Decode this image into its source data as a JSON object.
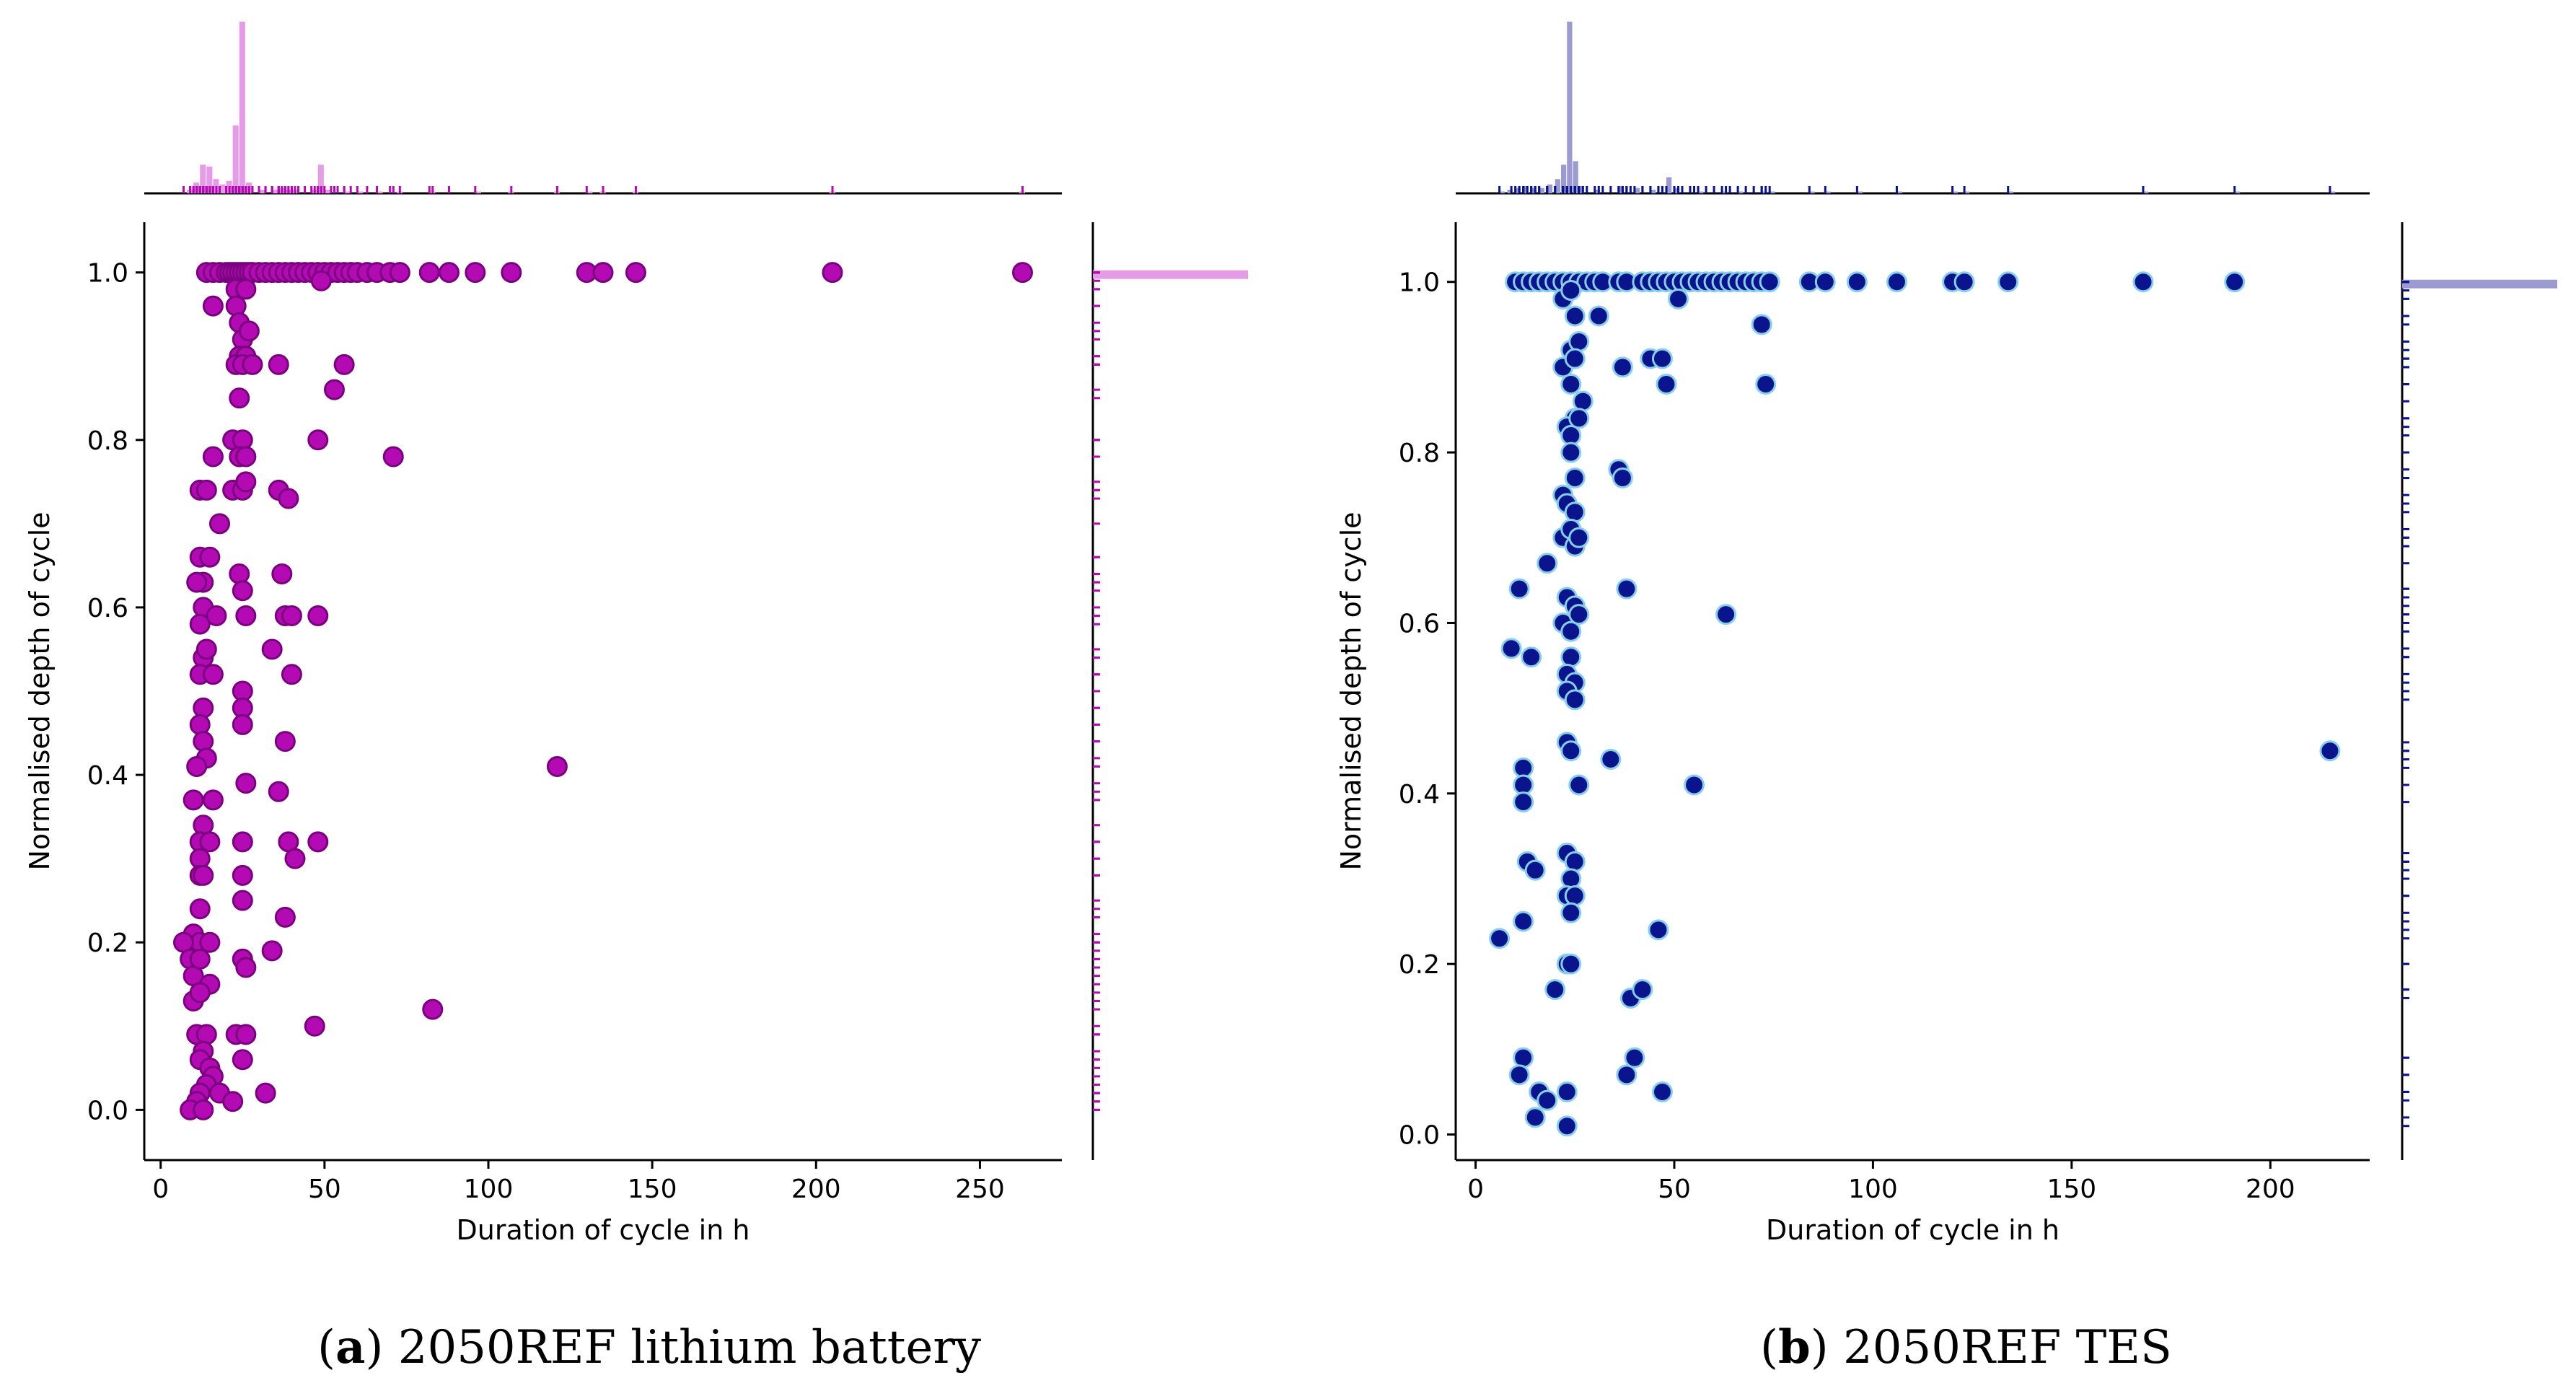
{
  "chart_data": [
    {
      "type": "scatter",
      "panel_letter": "a",
      "caption": "2050REF lithium battery",
      "xlabel": "Duration of cycle in h",
      "ylabel": "Normalised depth of cycle",
      "xlim": [
        -5,
        275
      ],
      "ylim": [
        -0.06,
        1.06
      ],
      "xticks": [
        0,
        50,
        100,
        150,
        200,
        250
      ],
      "yticks": [
        0.0,
        0.2,
        0.4,
        0.6,
        0.8,
        1.0
      ],
      "colors": {
        "marker_fill": "#b40ab4",
        "marker_edge": "#7a0080",
        "hist": "#e69be6",
        "rug": "#b40ab4"
      },
      "points": [
        [
          14,
          1.0
        ],
        [
          16,
          1.0
        ],
        [
          18,
          1.0
        ],
        [
          20,
          1.0
        ],
        [
          21,
          1.0
        ],
        [
          22,
          1.0
        ],
        [
          23,
          1.0
        ],
        [
          24,
          1.0
        ],
        [
          25,
          1.0
        ],
        [
          26,
          1.0
        ],
        [
          27,
          1.0
        ],
        [
          28,
          1.0
        ],
        [
          30,
          1.0
        ],
        [
          32,
          1.0
        ],
        [
          34,
          1.0
        ],
        [
          36,
          1.0
        ],
        [
          38,
          1.0
        ],
        [
          40,
          1.0
        ],
        [
          42,
          1.0
        ],
        [
          44,
          1.0
        ],
        [
          46,
          1.0
        ],
        [
          48,
          1.0
        ],
        [
          50,
          1.0
        ],
        [
          52,
          1.0
        ],
        [
          54,
          1.0
        ],
        [
          56,
          1.0
        ],
        [
          58,
          1.0
        ],
        [
          60,
          1.0
        ],
        [
          63,
          1.0
        ],
        [
          66,
          1.0
        ],
        [
          70,
          1.0
        ],
        [
          73,
          1.0
        ],
        [
          82,
          1.0
        ],
        [
          88,
          1.0
        ],
        [
          96,
          1.0
        ],
        [
          107,
          1.0
        ],
        [
          130,
          1.0
        ],
        [
          135,
          1.0
        ],
        [
          145,
          1.0
        ],
        [
          205,
          1.0
        ],
        [
          263,
          1.0
        ],
        [
          16,
          0.96
        ],
        [
          23,
          0.98
        ],
        [
          26,
          0.98
        ],
        [
          49,
          0.99
        ],
        [
          23,
          0.96
        ],
        [
          24,
          0.94
        ],
        [
          25,
          0.92
        ],
        [
          27,
          0.93
        ],
        [
          24,
          0.9
        ],
        [
          26,
          0.9
        ],
        [
          23,
          0.89
        ],
        [
          25,
          0.89
        ],
        [
          28,
          0.89
        ],
        [
          36,
          0.89
        ],
        [
          56,
          0.89
        ],
        [
          53,
          0.86
        ],
        [
          24,
          0.85
        ],
        [
          22,
          0.8
        ],
        [
          25,
          0.8
        ],
        [
          48,
          0.8
        ],
        [
          24,
          0.78
        ],
        [
          26,
          0.78
        ],
        [
          16,
          0.78
        ],
        [
          71,
          0.78
        ],
        [
          22,
          0.74
        ],
        [
          25,
          0.74
        ],
        [
          26,
          0.75
        ],
        [
          36,
          0.74
        ],
        [
          39,
          0.73
        ],
        [
          12,
          0.74
        ],
        [
          14,
          0.74
        ],
        [
          18,
          0.7
        ],
        [
          12,
          0.66
        ],
        [
          15,
          0.66
        ],
        [
          13,
          0.63
        ],
        [
          24,
          0.64
        ],
        [
          25,
          0.62
        ],
        [
          37,
          0.64
        ],
        [
          11,
          0.63
        ],
        [
          13,
          0.6
        ],
        [
          12,
          0.58
        ],
        [
          26,
          0.59
        ],
        [
          17,
          0.59
        ],
        [
          38,
          0.59
        ],
        [
          40,
          0.59
        ],
        [
          48,
          0.59
        ],
        [
          34,
          0.55
        ],
        [
          13,
          0.54
        ],
        [
          14,
          0.55
        ],
        [
          12,
          0.52
        ],
        [
          16,
          0.52
        ],
        [
          40,
          0.52
        ],
        [
          25,
          0.5
        ],
        [
          25,
          0.48
        ],
        [
          25,
          0.46
        ],
        [
          13,
          0.48
        ],
        [
          12,
          0.46
        ],
        [
          13,
          0.44
        ],
        [
          38,
          0.44
        ],
        [
          14,
          0.42
        ],
        [
          11,
          0.41
        ],
        [
          26,
          0.39
        ],
        [
          36,
          0.38
        ],
        [
          121,
          0.41
        ],
        [
          10,
          0.37
        ],
        [
          16,
          0.37
        ],
        [
          13,
          0.34
        ],
        [
          12,
          0.32
        ],
        [
          15,
          0.32
        ],
        [
          25,
          0.32
        ],
        [
          39,
          0.32
        ],
        [
          48,
          0.32
        ],
        [
          12,
          0.3
        ],
        [
          41,
          0.3
        ],
        [
          12,
          0.28
        ],
        [
          13,
          0.28
        ],
        [
          25,
          0.28
        ],
        [
          12,
          0.24
        ],
        [
          25,
          0.25
        ],
        [
          38,
          0.23
        ],
        [
          10,
          0.21
        ],
        [
          12,
          0.2
        ],
        [
          15,
          0.2
        ],
        [
          7,
          0.2
        ],
        [
          9,
          0.18
        ],
        [
          10,
          0.16
        ],
        [
          12,
          0.18
        ],
        [
          25,
          0.18
        ],
        [
          26,
          0.17
        ],
        [
          34,
          0.19
        ],
        [
          15,
          0.15
        ],
        [
          10,
          0.13
        ],
        [
          12,
          0.14
        ],
        [
          83,
          0.12
        ],
        [
          47,
          0.1
        ],
        [
          11,
          0.09
        ],
        [
          14,
          0.09
        ],
        [
          13,
          0.07
        ],
        [
          12,
          0.06
        ],
        [
          23,
          0.09
        ],
        [
          26,
          0.09
        ],
        [
          25,
          0.06
        ],
        [
          15,
          0.05
        ],
        [
          16,
          0.04
        ],
        [
          14,
          0.03
        ],
        [
          12,
          0.02
        ],
        [
          11,
          0.01
        ],
        [
          9,
          0.0
        ],
        [
          13,
          0.0
        ],
        [
          18,
          0.02
        ],
        [
          22,
          0.01
        ],
        [
          32,
          0.02
        ]
      ],
      "top_hist": {
        "bin_width": 2,
        "counts": [
          [
            8,
            2
          ],
          [
            10,
            6
          ],
          [
            12,
            16
          ],
          [
            14,
            15
          ],
          [
            16,
            8
          ],
          [
            18,
            5
          ],
          [
            20,
            7
          ],
          [
            22,
            38
          ],
          [
            24,
            96
          ],
          [
            26,
            6
          ],
          [
            30,
            2
          ],
          [
            34,
            2
          ],
          [
            36,
            3
          ],
          [
            38,
            2
          ],
          [
            40,
            2
          ],
          [
            46,
            2
          ],
          [
            48,
            16
          ],
          [
            50,
            2
          ],
          [
            56,
            1
          ],
          [
            60,
            1
          ],
          [
            66,
            1
          ],
          [
            72,
            1
          ],
          [
            82,
            1
          ],
          [
            96,
            1
          ],
          [
            106,
            1
          ],
          [
            120,
            1
          ],
          [
            130,
            1
          ],
          [
            134,
            1
          ],
          [
            144,
            1
          ],
          [
            204,
            1
          ],
          [
            262,
            1
          ]
        ]
      },
      "right_hist": {
        "bins": [
          [
            0.99,
            1.0,
            88
          ]
        ],
        "rug_x_max": 2
      }
    },
    {
      "type": "scatter",
      "panel_letter": "b",
      "caption": "2050REF TES",
      "xlabel": "Duration of cycle in h",
      "ylabel": "Normalised depth of cycle",
      "xlim": [
        -5,
        225
      ],
      "ylim": [
        -0.03,
        1.07
      ],
      "xticks": [
        0,
        50,
        100,
        150,
        200
      ],
      "yticks": [
        0.0,
        0.2,
        0.4,
        0.6,
        0.8,
        1.0
      ],
      "colors": {
        "marker_fill": "#0a148c",
        "marker_edge": "#87ceeb",
        "hist": "#9b9bd2",
        "rug": "#0a148c"
      },
      "points": [
        [
          10,
          1.0
        ],
        [
          12,
          1.0
        ],
        [
          14,
          1.0
        ],
        [
          16,
          1.0
        ],
        [
          18,
          1.0
        ],
        [
          20,
          1.0
        ],
        [
          22,
          1.0
        ],
        [
          24,
          1.0
        ],
        [
          26,
          1.0
        ],
        [
          28,
          1.0
        ],
        [
          30,
          1.0
        ],
        [
          32,
          1.0
        ],
        [
          36,
          1.0
        ],
        [
          38,
          1.0
        ],
        [
          42,
          1.0
        ],
        [
          44,
          1.0
        ],
        [
          46,
          1.0
        ],
        [
          48,
          1.0
        ],
        [
          50,
          1.0
        ],
        [
          52,
          1.0
        ],
        [
          54,
          1.0
        ],
        [
          56,
          1.0
        ],
        [
          58,
          1.0
        ],
        [
          60,
          1.0
        ],
        [
          62,
          1.0
        ],
        [
          64,
          1.0
        ],
        [
          66,
          1.0
        ],
        [
          68,
          1.0
        ],
        [
          70,
          1.0
        ],
        [
          72,
          1.0
        ],
        [
          74,
          1.0
        ],
        [
          84,
          1.0
        ],
        [
          88,
          1.0
        ],
        [
          96,
          1.0
        ],
        [
          106,
          1.0
        ],
        [
          120,
          1.0
        ],
        [
          123,
          1.0
        ],
        [
          134,
          1.0
        ],
        [
          168,
          1.0
        ],
        [
          191,
          1.0
        ],
        [
          22,
          0.98
        ],
        [
          24,
          0.99
        ],
        [
          51,
          0.98
        ],
        [
          31,
          0.96
        ],
        [
          25,
          0.96
        ],
        [
          72,
          0.95
        ],
        [
          24,
          0.92
        ],
        [
          26,
          0.93
        ],
        [
          22,
          0.9
        ],
        [
          25,
          0.91
        ],
        [
          37,
          0.9
        ],
        [
          44,
          0.91
        ],
        [
          47,
          0.91
        ],
        [
          48,
          0.88
        ],
        [
          73,
          0.88
        ],
        [
          24,
          0.88
        ],
        [
          27,
          0.86
        ],
        [
          25,
          0.84
        ],
        [
          23,
          0.83
        ],
        [
          26,
          0.84
        ],
        [
          24,
          0.82
        ],
        [
          24,
          0.8
        ],
        [
          36,
          0.78
        ],
        [
          37,
          0.77
        ],
        [
          25,
          0.77
        ],
        [
          22,
          0.75
        ],
        [
          23,
          0.74
        ],
        [
          25,
          0.73
        ],
        [
          22,
          0.7
        ],
        [
          24,
          0.71
        ],
        [
          25,
          0.69
        ],
        [
          26,
          0.7
        ],
        [
          18,
          0.67
        ],
        [
          11,
          0.64
        ],
        [
          23,
          0.63
        ],
        [
          25,
          0.62
        ],
        [
          38,
          0.64
        ],
        [
          63,
          0.61
        ],
        [
          22,
          0.6
        ],
        [
          24,
          0.59
        ],
        [
          26,
          0.61
        ],
        [
          9,
          0.57
        ],
        [
          14,
          0.56
        ],
        [
          24,
          0.56
        ],
        [
          23,
          0.54
        ],
        [
          25,
          0.53
        ],
        [
          23,
          0.52
        ],
        [
          25,
          0.51
        ],
        [
          23,
          0.46
        ],
        [
          24,
          0.45
        ],
        [
          34,
          0.44
        ],
        [
          26,
          0.41
        ],
        [
          12,
          0.43
        ],
        [
          12,
          0.41
        ],
        [
          12,
          0.39
        ],
        [
          55,
          0.41
        ],
        [
          215,
          0.45
        ],
        [
          13,
          0.32
        ],
        [
          15,
          0.31
        ],
        [
          23,
          0.33
        ],
        [
          25,
          0.32
        ],
        [
          24,
          0.3
        ],
        [
          23,
          0.28
        ],
        [
          25,
          0.28
        ],
        [
          24,
          0.26
        ],
        [
          12,
          0.25
        ],
        [
          46,
          0.24
        ],
        [
          6,
          0.23
        ],
        [
          23,
          0.2
        ],
        [
          24,
          0.2
        ],
        [
          20,
          0.17
        ],
        [
          39,
          0.16
        ],
        [
          42,
          0.17
        ],
        [
          12,
          0.09
        ],
        [
          40,
          0.09
        ],
        [
          11,
          0.07
        ],
        [
          38,
          0.07
        ],
        [
          16,
          0.05
        ],
        [
          18,
          0.04
        ],
        [
          23,
          0.05
        ],
        [
          47,
          0.05
        ],
        [
          15,
          0.02
        ],
        [
          23,
          0.01
        ]
      ],
      "top_hist": {
        "bin_width": 1.5,
        "counts": [
          [
            6,
            1
          ],
          [
            8,
            2
          ],
          [
            10,
            3
          ],
          [
            12,
            4
          ],
          [
            14,
            3
          ],
          [
            16,
            3
          ],
          [
            18,
            5
          ],
          [
            20,
            8
          ],
          [
            21.5,
            16
          ],
          [
            23,
            96
          ],
          [
            24.5,
            18
          ],
          [
            26,
            4
          ],
          [
            30,
            2
          ],
          [
            36,
            4
          ],
          [
            40,
            3
          ],
          [
            44,
            2
          ],
          [
            48,
            9
          ],
          [
            50,
            3
          ],
          [
            56,
            1
          ],
          [
            62,
            1
          ],
          [
            66,
            1
          ],
          [
            72,
            1
          ],
          [
            74,
            1
          ],
          [
            84,
            1
          ],
          [
            88,
            1
          ],
          [
            96,
            1
          ],
          [
            106,
            1
          ],
          [
            120,
            1
          ],
          [
            123,
            1
          ],
          [
            134,
            1
          ],
          [
            168,
            1
          ],
          [
            191,
            1
          ],
          [
            215,
            1
          ]
        ]
      },
      "right_hist": {
        "bins": [
          [
            0.99,
            1.0,
            88
          ]
        ],
        "rug_x_max": 2
      }
    }
  ]
}
